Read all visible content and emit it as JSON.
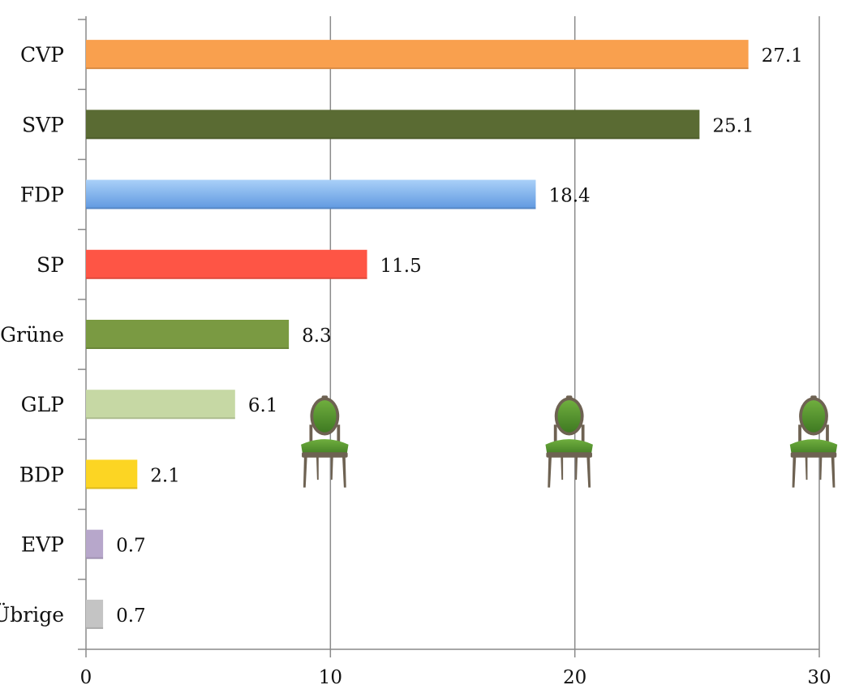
{
  "chart_data": {
    "type": "bar",
    "orientation": "horizontal",
    "categories": [
      "CVP",
      "SVP",
      "FDP",
      "SP",
      "Grüne",
      "GLP",
      "BDP",
      "EVP",
      "Übrige"
    ],
    "values": [
      27.1,
      25.1,
      18.4,
      11.5,
      8.3,
      6.1,
      2.1,
      0.7,
      0.7
    ],
    "value_labels": [
      "27.1",
      "25.1",
      "18.4",
      "11.5",
      "8.3",
      "6.1",
      "2.1",
      "0.7",
      "0.7"
    ],
    "colors": [
      "#F9A04E",
      "#5A6B33",
      "#7FB3EE",
      "#FE5545",
      "#7A9A42",
      "#C6D8A4",
      "#FCD523",
      "#B7A7CB",
      "#C4C4C4"
    ],
    "xlim": [
      0,
      30
    ],
    "x_ticks": [
      0,
      10,
      20,
      30
    ],
    "x_tick_labels": [
      "0",
      "10",
      "20",
      "30"
    ],
    "grid": "vertical",
    "title": "",
    "xlabel": "",
    "ylabel": "",
    "decorations": [
      {
        "icon": "green-chair-icon",
        "x": 10
      },
      {
        "icon": "green-chair-icon",
        "x": 20
      },
      {
        "icon": "green-chair-icon",
        "x": 30
      }
    ]
  }
}
